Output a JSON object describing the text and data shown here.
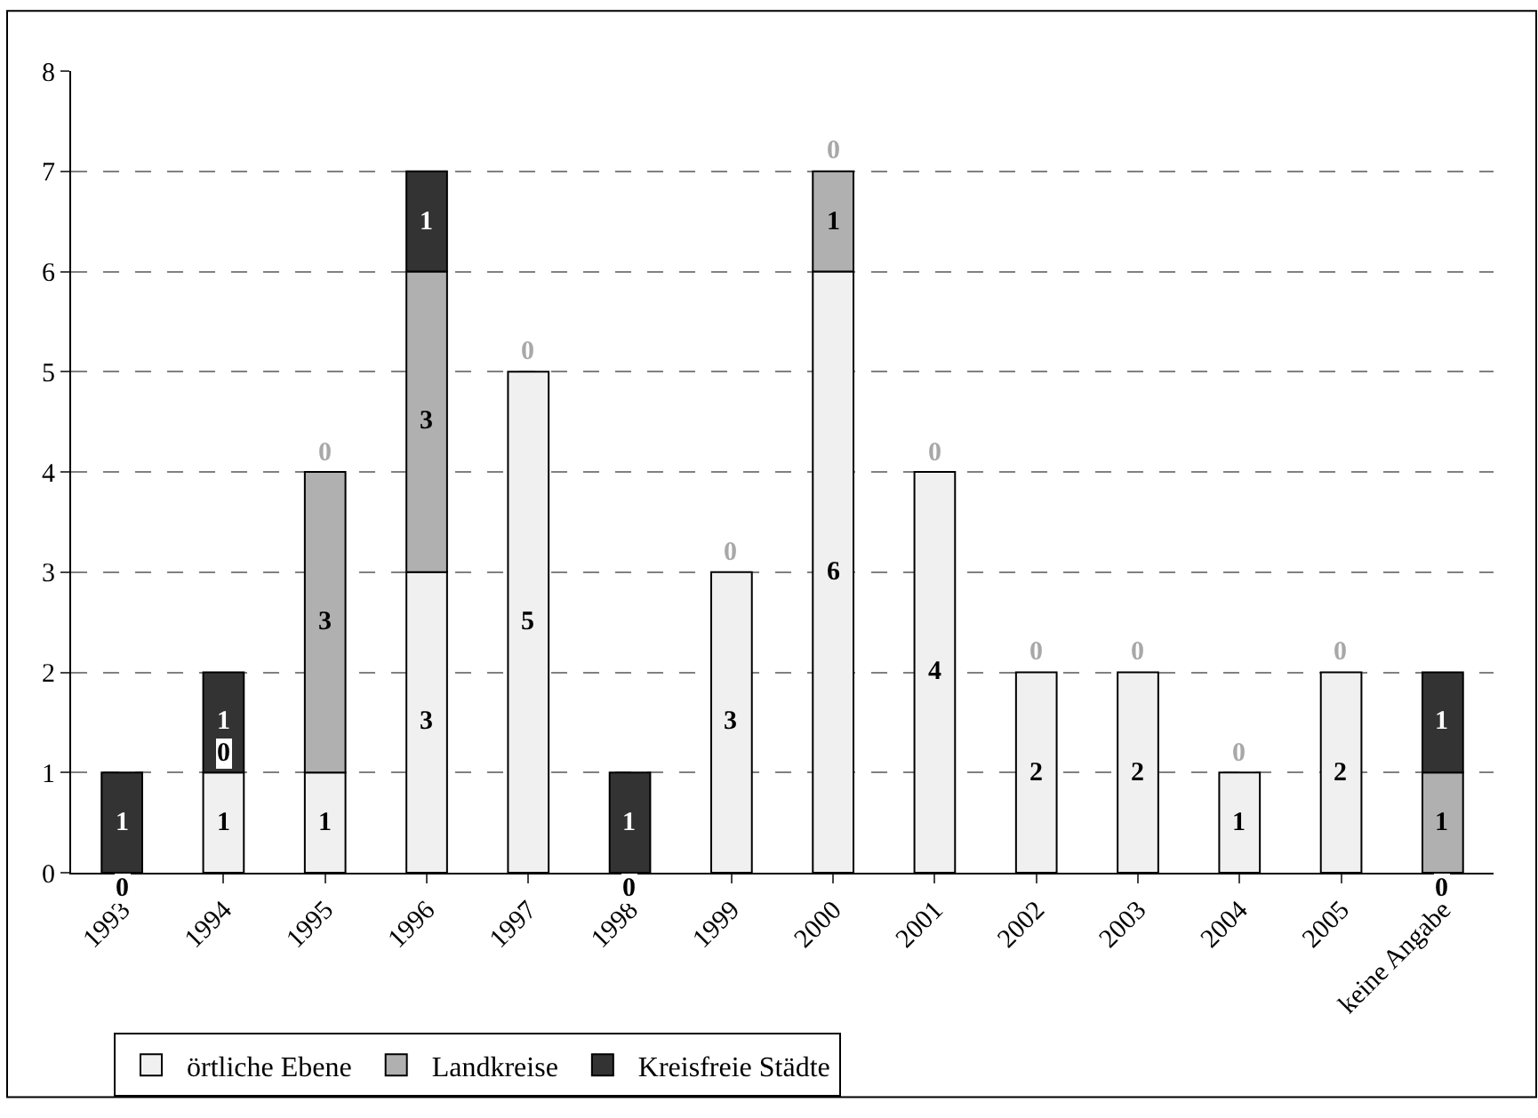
{
  "chart_data": {
    "type": "bar",
    "stacked": true,
    "categories": [
      "1993",
      "1994",
      "1995",
      "1996",
      "1997",
      "1998",
      "1999",
      "2000",
      "2001",
      "2002",
      "2003",
      "2004",
      "2005",
      "keine Angabe"
    ],
    "series": [
      {
        "name": "örtliche Ebene",
        "color": "#f0f0f0",
        "values": [
          0,
          1,
          1,
          3,
          5,
          0,
          3,
          6,
          4,
          2,
          2,
          1,
          2,
          0
        ],
        "value_labels": [
          "0",
          "1",
          "1",
          "3",
          "5",
          "0",
          "3",
          "6",
          "4",
          "2",
          "2",
          "1",
          "2",
          "0"
        ]
      },
      {
        "name": "Landkreise",
        "color": "#b0b0b0",
        "values": [
          0,
          0,
          3,
          3,
          0,
          0,
          0,
          1,
          0,
          0,
          0,
          0,
          0,
          1
        ],
        "value_labels": [
          null,
          "0",
          "3",
          "3",
          null,
          null,
          null,
          "1",
          null,
          null,
          null,
          null,
          null,
          "1"
        ]
      },
      {
        "name": "Kreisfreie Städte",
        "color": "#333333",
        "values": [
          1,
          1,
          0,
          1,
          0,
          1,
          0,
          0,
          0,
          0,
          0,
          0,
          0,
          1
        ],
        "value_labels": [
          "1",
          "1",
          "0",
          "1",
          "0",
          "1",
          "0",
          "0",
          "0",
          "0",
          "0",
          "0",
          "0",
          "1"
        ]
      }
    ],
    "ylim": [
      0,
      8
    ],
    "yticks": [
      0,
      1,
      2,
      3,
      4,
      5,
      6,
      7,
      8
    ],
    "grid": "y",
    "legend": "bottom"
  }
}
